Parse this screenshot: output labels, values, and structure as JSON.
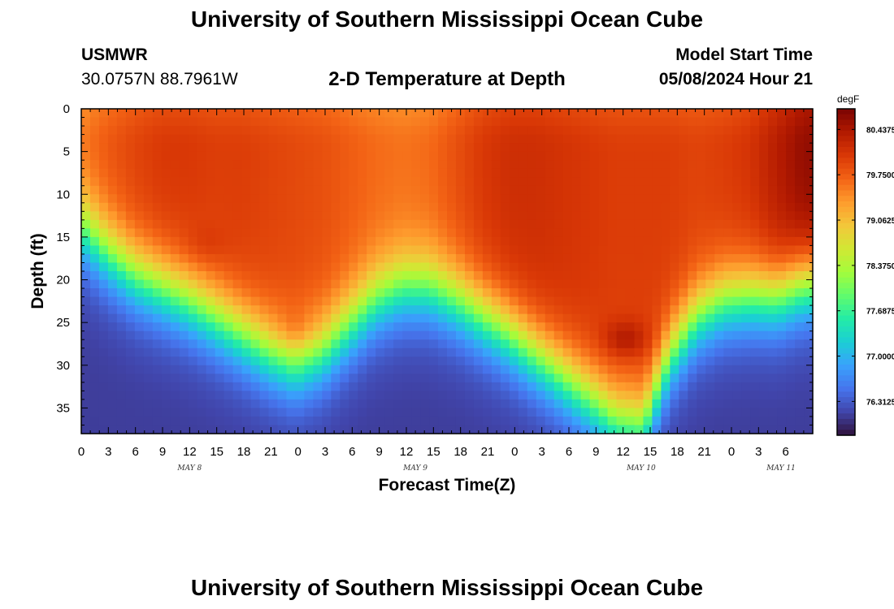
{
  "header": {
    "title": "University of Southern Mississippi Ocean Cube",
    "station": "USMWR",
    "coords": "30.0757N  88.7961W",
    "plot_title": "2-D Temperature at Depth",
    "model_start_label": "Model Start Time",
    "model_start_value": "05/08/2024 Hour 21"
  },
  "footer": {
    "title": "University of Southern Mississippi Ocean Cube"
  },
  "colors": {
    "colormap": [
      "#30123b",
      "#4145ab",
      "#4675ed",
      "#39a2fc",
      "#1bcfd4",
      "#24eca6",
      "#61fc6c",
      "#a4fc3b",
      "#d1e834",
      "#f3c63a",
      "#fe9b2d",
      "#f36315",
      "#d93806",
      "#b11901",
      "#7a0402"
    ]
  },
  "chart_data": {
    "type": "heatmap",
    "title": "2-D Temperature at Depth",
    "xlabel": "Forecast Time(Z)",
    "ylabel": "Depth (ft)",
    "x_range_hours": [
      0,
      81
    ],
    "x_start": "05/08/2024 00Z",
    "x_tick_step_hours": 3,
    "x_tick_labels": [
      "0",
      "3",
      "6",
      "9",
      "12",
      "15",
      "18",
      "21",
      "0",
      "3",
      "6",
      "9",
      "12",
      "15",
      "18",
      "21",
      "0",
      "3",
      "6",
      "9",
      "12",
      "15",
      "18",
      "21",
      "0",
      "3",
      "6"
    ],
    "day_labels": [
      {
        "label": "MAY 8",
        "hour": 12
      },
      {
        "label": "MAY 9",
        "hour": 37
      },
      {
        "label": "MAY 10",
        "hour": 62
      },
      {
        "label": "MAY 11",
        "hour": 77.5
      }
    ],
    "y_range_ft": [
      0,
      38
    ],
    "y_inverted": true,
    "y_ticks": [
      0,
      5,
      10,
      15,
      20,
      25,
      30,
      35
    ],
    "y_tick_labels": [
      "0",
      "5",
      "10",
      "15",
      "20",
      "25",
      "30",
      "35"
    ],
    "colorbar": {
      "units": "degF",
      "min": 75.8,
      "max": 80.75,
      "tick_values": [
        80.4375,
        79.75,
        79.0625,
        78.375,
        77.6875,
        77.0,
        76.3125
      ],
      "tick_labels": [
        "80.4375",
        "79.7500",
        "79.0625",
        "78.3750",
        "77.6875",
        "77.0000",
        "76.3125"
      ]
    },
    "grid": {
      "n_time": 82,
      "n_depth": 38,
      "time_step_hours": 1,
      "depth_step_ft": 1
    },
    "thermocline_depth_ft": {
      "hours": [
        0,
        3,
        6,
        9,
        12,
        15,
        18,
        21,
        24,
        27,
        30,
        33,
        36,
        39,
        42,
        45,
        48,
        51,
        54,
        57,
        60,
        63,
        66,
        69,
        72,
        75,
        78,
        81
      ],
      "depths": [
        14,
        17,
        19.5,
        21,
        22.5,
        24.5,
        26.5,
        28.5,
        30,
        28.5,
        25.5,
        22.5,
        21,
        21,
        22.5,
        24.5,
        26.5,
        29,
        31.5,
        34,
        36.5,
        37,
        29,
        24.5,
        22.5,
        22,
        22,
        20.5
      ]
    },
    "surface_temp_degF": {
      "hours": [
        0,
        3,
        6,
        9,
        12,
        15,
        18,
        21,
        24,
        27,
        30,
        33,
        36,
        39,
        42,
        45,
        48,
        51,
        54,
        57,
        60,
        63,
        66,
        69,
        72,
        75,
        78,
        81
      ],
      "temps": [
        79.6,
        79.8,
        79.95,
        80.05,
        80.05,
        80.0,
        80.0,
        79.95,
        79.9,
        79.85,
        79.75,
        79.65,
        79.6,
        79.65,
        79.85,
        80.05,
        80.15,
        80.15,
        80.1,
        80.05,
        80.0,
        80.0,
        80.0,
        79.95,
        80.0,
        80.1,
        80.35,
        80.6
      ]
    },
    "bottom_temp_degF": 76.1,
    "warm_spots": [
      {
        "hour": 14,
        "depth_ft": 16,
        "delta_degF": 0.15
      },
      {
        "hour": 24,
        "depth_ft": 26,
        "delta_degF": 0.2
      },
      {
        "hour": 61,
        "depth_ft": 27,
        "delta_degF": 0.45
      }
    ]
  }
}
